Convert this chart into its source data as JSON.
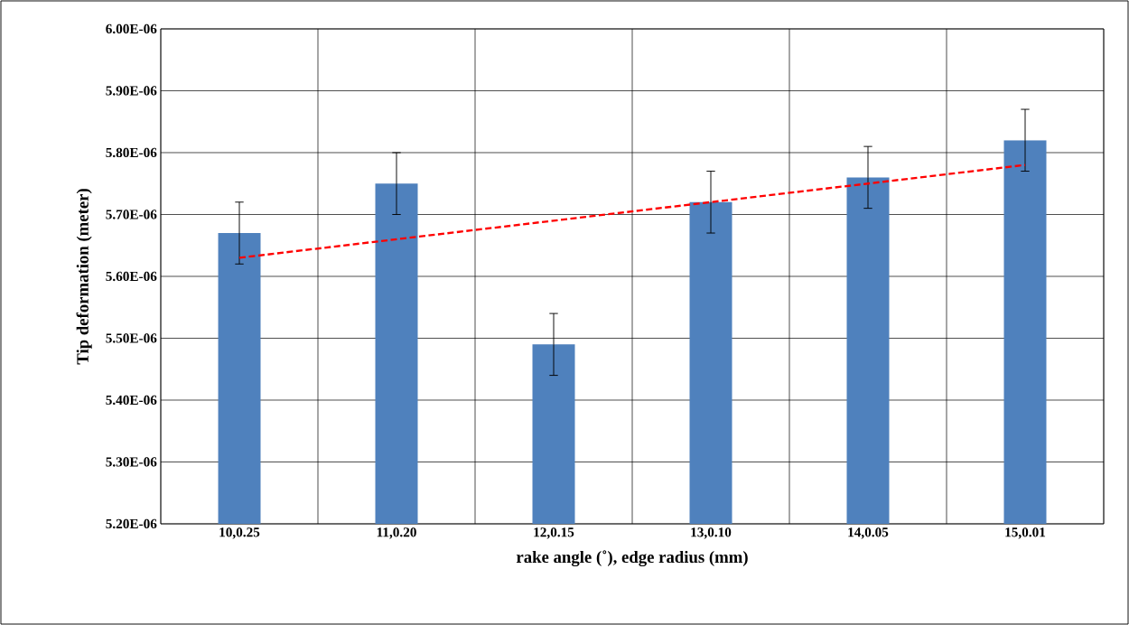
{
  "chart_data": {
    "type": "bar",
    "xlabel": "rake angle (˚), edge radius (mm)",
    "ylabel": "Tip deformation (meter)",
    "categories": [
      "10,0.25",
      "11,0.20",
      "12,0.15",
      "13,0.10",
      "14,0.05",
      "15,0.01"
    ],
    "series": [
      {
        "color": "#4f81bd",
        "values": [
          5.67e-06,
          5.75e-06,
          5.49e-06,
          5.72e-06,
          5.76e-06,
          5.82e-06
        ],
        "errors": [
          5e-08,
          5e-08,
          5e-08,
          5e-08,
          5e-08,
          5e-08
        ]
      },
      {
        "type": "line",
        "color": "#ff0000",
        "line_style": "dashed",
        "x": [
          "10,0.25",
          "15,0.01"
        ],
        "values": [
          5.63e-06,
          5.78e-06
        ]
      }
    ],
    "ylim": [
      5.2e-06,
      6e-06
    ],
    "yticks": [
      {
        "value": 5.2e-06,
        "label": "5.20E-06"
      },
      {
        "value": 5.3e-06,
        "label": "5.30E-06"
      },
      {
        "value": 5.4e-06,
        "label": "5.40E-06"
      },
      {
        "value": 5.5e-06,
        "label": "5.50E-06"
      },
      {
        "value": 5.6e-06,
        "label": "5.60E-06"
      },
      {
        "value": 5.7e-06,
        "label": "5.70E-06"
      },
      {
        "value": 5.8e-06,
        "label": "5.80E-06"
      },
      {
        "value": 5.9e-06,
        "label": "5.90E-06"
      },
      {
        "value": 6e-06,
        "label": "6.00E-06"
      }
    ],
    "grid": true
  }
}
